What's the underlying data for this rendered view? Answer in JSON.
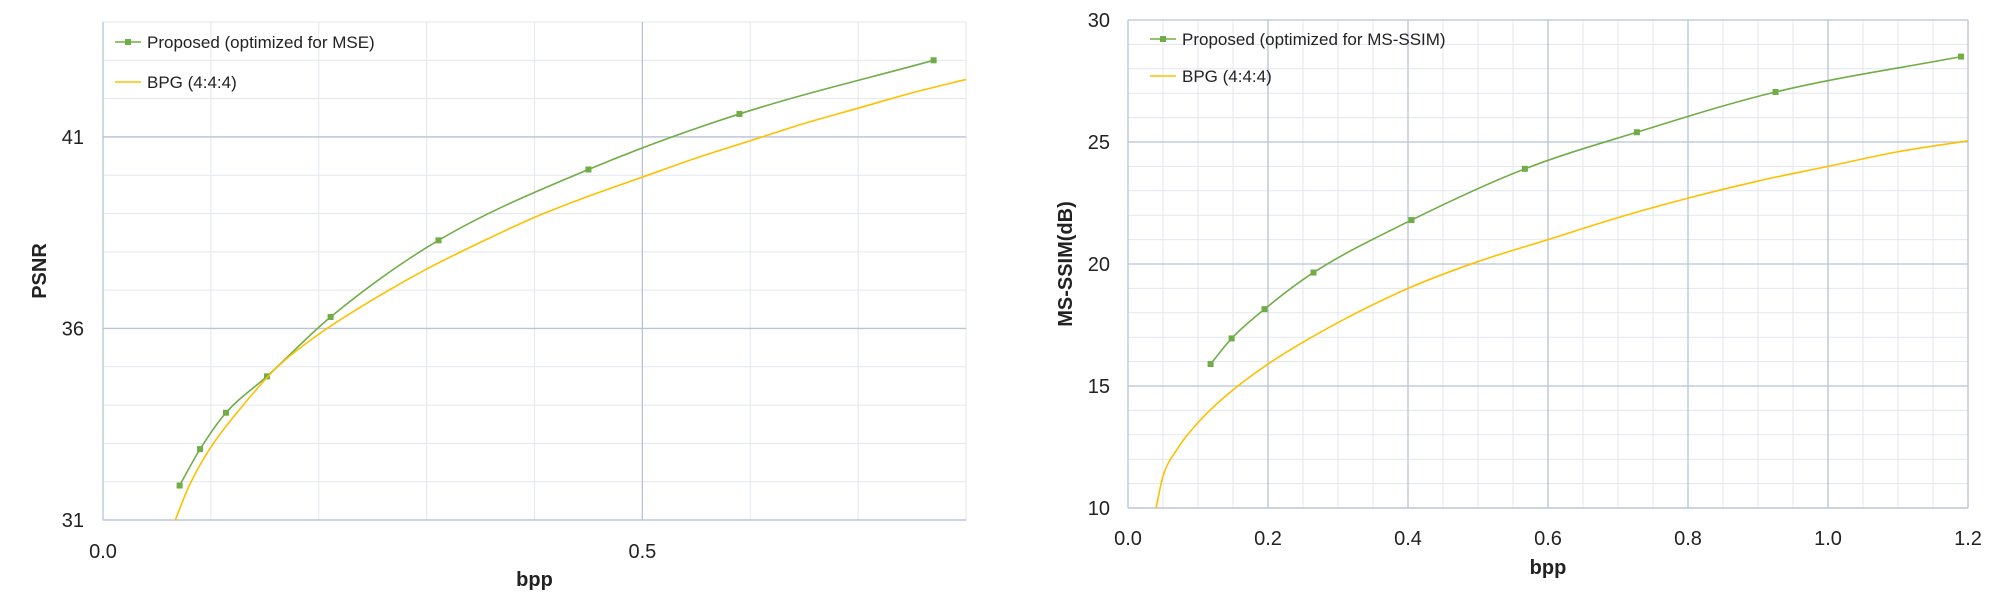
{
  "chart_data": [
    {
      "type": "line",
      "xlabel": "bpp",
      "ylabel": "PSNR",
      "xlim": [
        0,
        0.8
      ],
      "ylim": [
        31,
        44
      ],
      "x_ticks": [
        0.0,
        0.5
      ],
      "x_tick_labels": [
        "0.0",
        "0.5"
      ],
      "y_ticks": [
        31,
        36,
        41
      ],
      "y_tick_labels": [
        "31",
        "36",
        "41"
      ],
      "minor_x_step": 0.1,
      "minor_y_step": 1,
      "grid": true,
      "legend_position": "top-left",
      "series": [
        {
          "name": "Proposed (optimized for MSE)",
          "color": "#70ad47",
          "markers": true,
          "x": [
            0.071,
            0.09,
            0.114,
            0.152,
            0.211,
            0.311,
            0.45,
            0.59,
            0.77
          ],
          "y": [
            31.9,
            32.85,
            33.8,
            34.75,
            36.3,
            38.3,
            40.15,
            41.6,
            43.0
          ]
        },
        {
          "name": "BPG (4:4:4)",
          "color": "#ffc000",
          "markers": false,
          "x": [
            0.067,
            0.08,
            0.1,
            0.13,
            0.16,
            0.2,
            0.25,
            0.3,
            0.35,
            0.4,
            0.45,
            0.5,
            0.55,
            0.6,
            0.65,
            0.7,
            0.75,
            0.8
          ],
          "y": [
            31.0,
            31.9,
            32.9,
            34.0,
            34.95,
            35.85,
            36.75,
            37.55,
            38.25,
            38.9,
            39.45,
            39.95,
            40.45,
            40.9,
            41.35,
            41.75,
            42.15,
            42.5
          ]
        }
      ]
    },
    {
      "type": "line",
      "xlabel": "bpp",
      "ylabel": "MS-SSIM(dB)",
      "xlim": [
        0,
        1.2
      ],
      "ylim": [
        10,
        30
      ],
      "x_ticks": [
        0.0,
        0.2,
        0.4,
        0.6,
        0.8,
        1.0,
        1.2
      ],
      "x_tick_labels": [
        "0.0",
        "0.2",
        "0.4",
        "0.6",
        "0.8",
        "1.0",
        "1.2"
      ],
      "y_ticks": [
        10,
        15,
        20,
        25,
        30
      ],
      "y_tick_labels": [
        "10",
        "15",
        "20",
        "25",
        "30"
      ],
      "minor_x_step": 0.05,
      "minor_y_step": 1,
      "grid": true,
      "legend_position": "top-left",
      "series": [
        {
          "name": "Proposed (optimized for MS-SSIM)",
          "color": "#70ad47",
          "markers": true,
          "x": [
            0.118,
            0.148,
            0.195,
            0.265,
            0.405,
            0.567,
            0.727,
            0.925,
            1.19
          ],
          "y": [
            15.9,
            16.95,
            18.15,
            19.65,
            21.8,
            23.9,
            25.4,
            27.05,
            28.5
          ]
        },
        {
          "name": "BPG (4:4:4)",
          "color": "#ffc000",
          "markers": false,
          "x": [
            0.04,
            0.05,
            0.07,
            0.1,
            0.14,
            0.2,
            0.3,
            0.4,
            0.5,
            0.6,
            0.7,
            0.8,
            0.9,
            1.0,
            1.1,
            1.2
          ],
          "y": [
            10.0,
            11.3,
            12.4,
            13.5,
            14.6,
            15.9,
            17.6,
            19.0,
            20.1,
            21.0,
            21.9,
            22.7,
            23.4,
            24.0,
            24.6,
            25.05
          ]
        }
      ]
    }
  ]
}
